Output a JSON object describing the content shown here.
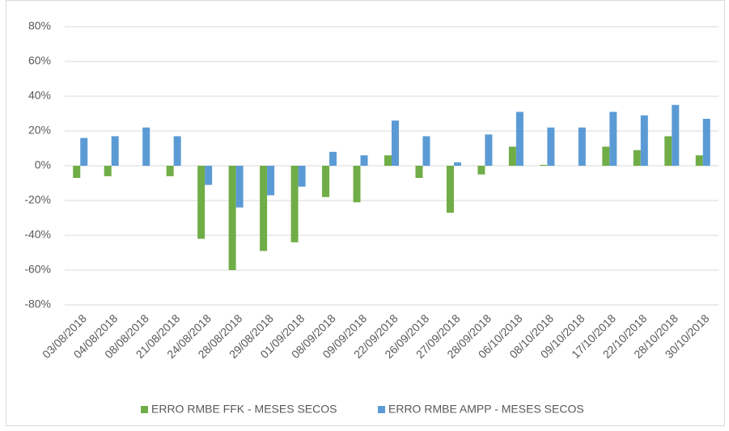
{
  "chart_data": {
    "type": "bar",
    "categories": [
      "03/08/2018",
      "04/08/2018",
      "08/08/2018",
      "21/08/2018",
      "24/08/2018",
      "28/08/2018",
      "29/08/2018",
      "01/09/2018",
      "08/09/2018",
      "09/09/2018",
      "22/09/2018",
      "26/09/2018",
      "27/09/2018",
      "28/09/2018",
      "06/10/2018",
      "08/10/2018",
      "09/10/2018",
      "17/10/2018",
      "22/10/2018",
      "28/10/2018",
      "30/10/2018"
    ],
    "series": [
      {
        "name": "ERRO RMBE FFK - MESES SECOS",
        "color": "#70ad47",
        "values": [
          -7,
          -6,
          0,
          -6,
          -42,
          -60,
          -49,
          -44,
          -18,
          -21,
          6,
          -7,
          -27,
          -5,
          11,
          0.5,
          0,
          11,
          9,
          17,
          6
        ]
      },
      {
        "name": "ERRO RMBE AMPP - MESES SECOS",
        "color": "#5b9bd5",
        "values": [
          16,
          17,
          22,
          17,
          -11,
          -24,
          -17,
          -12,
          8,
          6,
          26,
          17,
          2,
          18,
          31,
          22,
          22,
          31,
          29,
          35,
          27
        ]
      }
    ],
    "ylim": [
      -80,
      80
    ],
    "yticks": [
      {
        "value": -80,
        "label": "-80%"
      },
      {
        "value": -60,
        "label": "-60%"
      },
      {
        "value": -40,
        "label": "-40%"
      },
      {
        "value": -20,
        "label": "-20%"
      },
      {
        "value": 0,
        "label": "0%"
      },
      {
        "value": 20,
        "label": "20%"
      },
      {
        "value": 40,
        "label": "40%"
      },
      {
        "value": 60,
        "label": "60%"
      },
      {
        "value": 80,
        "label": "80%"
      }
    ],
    "grid": true,
    "legend": "bottom"
  }
}
